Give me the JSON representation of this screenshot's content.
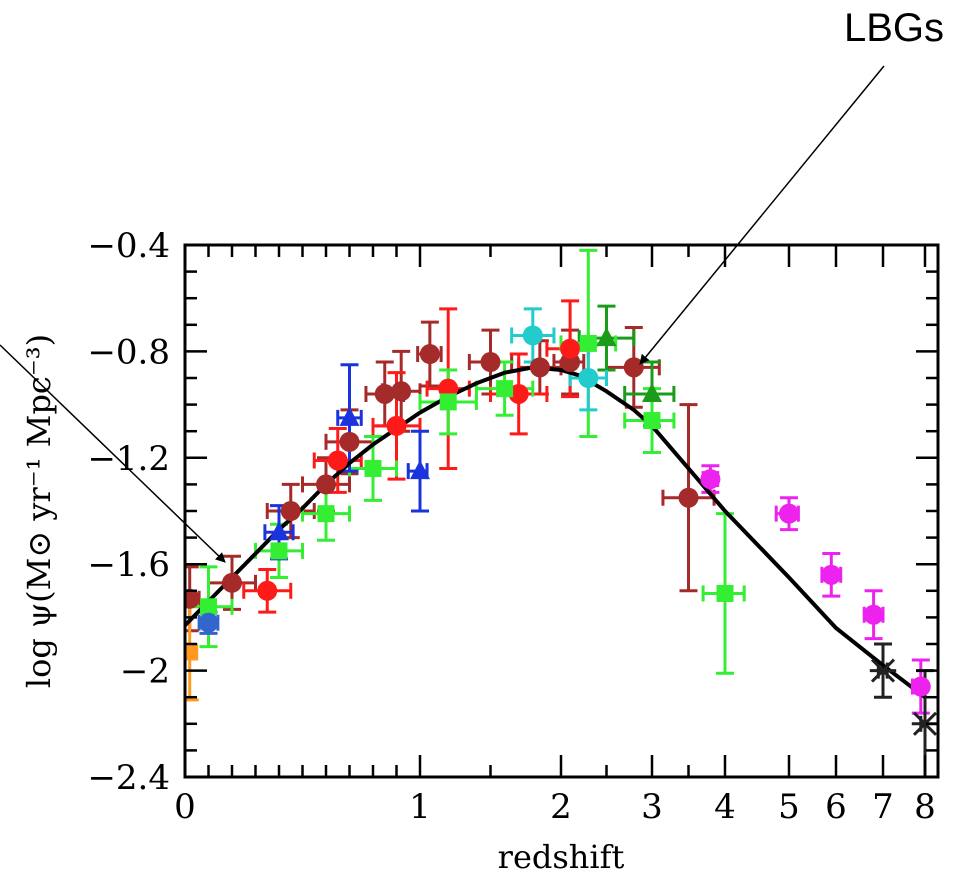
{
  "annotation": {
    "label": "LBGs"
  },
  "chart_data": {
    "type": "scatter",
    "xlabel": "redshift",
    "ylabel": "log ψ(M⊙ yr⁻¹ Mpc⁻³)",
    "ylim": [
      -2.4,
      -0.4
    ],
    "x_ticks": [
      "0",
      "1",
      "2",
      "3",
      "4",
      "5",
      "6",
      "7",
      "8"
    ],
    "y_ticks": [
      "-0.4",
      "-0.8",
      "-1.2",
      "-1.6",
      "-2",
      "-2.4"
    ],
    "grid": false,
    "fit_curve": {
      "name": "",
      "points": [
        [
          0.0,
          -1.83
        ],
        [
          0.1,
          -1.74
        ],
        [
          0.2,
          -1.65
        ],
        [
          0.3,
          -1.56
        ],
        [
          0.4,
          -1.47
        ],
        [
          0.5,
          -1.39
        ],
        [
          0.6,
          -1.3
        ],
        [
          0.7,
          -1.22
        ],
        [
          0.8,
          -1.15
        ],
        [
          0.9,
          -1.09
        ],
        [
          1.0,
          -1.03
        ],
        [
          1.2,
          -0.97
        ],
        [
          1.4,
          -0.92
        ],
        [
          1.6,
          -0.88
        ],
        [
          1.8,
          -0.86
        ],
        [
          2.0,
          -0.87
        ],
        [
          2.2,
          -0.89
        ],
        [
          2.5,
          -0.95
        ],
        [
          2.8,
          -1.02
        ],
        [
          3.0,
          -1.08
        ],
        [
          3.5,
          -1.24
        ],
        [
          4.0,
          -1.4
        ],
        [
          5.0,
          -1.65
        ],
        [
          6.0,
          -1.84
        ],
        [
          7.0,
          -1.98
        ],
        [
          8.0,
          -2.1
        ]
      ]
    },
    "series": [
      {
        "color": "#a52a2a",
        "marker": "circle",
        "points": [
          {
            "x": 0.02,
            "y": -1.73,
            "yerr": 0.12,
            "xerr": 0.04
          },
          {
            "x": 0.2,
            "y": -1.67,
            "yerr": 0.1,
            "xerr": 0.1
          },
          {
            "x": 0.45,
            "y": -1.4,
            "yerr": 0.1,
            "xerr": 0.1
          },
          {
            "x": 0.6,
            "y": -1.3,
            "yerr": 0.1,
            "xerr": 0.1
          },
          {
            "x": 0.7,
            "y": -1.14,
            "yerr": 0.12,
            "xerr": 0.1
          },
          {
            "x": 0.85,
            "y": -0.96,
            "yerr": 0.12,
            "xerr": 0.08
          },
          {
            "x": 0.92,
            "y": -0.95,
            "yerr": 0.15,
            "xerr": 0.08
          },
          {
            "x": 1.07,
            "y": -0.81,
            "yerr": 0.12,
            "xerr": 0.08
          },
          {
            "x": 1.5,
            "y": -0.84,
            "yerr": 0.12,
            "xerr": 0.15
          },
          {
            "x": 1.85,
            "y": -0.86,
            "yerr": 0.1,
            "xerr": 0.15
          },
          {
            "x": 2.1,
            "y": -0.84,
            "yerr": 0.12,
            "xerr": 0.15
          },
          {
            "x": 2.8,
            "y": -0.86,
            "yerr": 0.15,
            "xerr": 0.3
          },
          {
            "x": 3.5,
            "y": -1.35,
            "yerr": 0.35,
            "xerr": 0.35
          }
        ]
      },
      {
        "color": "#ff1a1a",
        "marker": "circle",
        "points": [
          {
            "x": 0.35,
            "y": -1.7,
            "yerr": 0.08,
            "xerr": 0.1
          },
          {
            "x": 0.65,
            "y": -1.21,
            "yerr": 0.12,
            "xerr": 0.1
          },
          {
            "x": 0.9,
            "y": -1.08,
            "yerr": 0.2,
            "xerr": 0.1
          },
          {
            "x": 1.2,
            "y": -0.94,
            "yerr": 0.3,
            "xerr": 0.15
          },
          {
            "x": 1.7,
            "y": -0.96,
            "yerr": 0.15,
            "xerr": 0.2
          },
          {
            "x": 2.1,
            "y": -0.79,
            "yerr": 0.18,
            "xerr": 0.2
          }
        ]
      },
      {
        "color": "#1a9c1a",
        "marker": "triangle",
        "points": [
          {
            "x": 2.5,
            "y": -0.75,
            "yerr": 0.12,
            "xerr": 0.3
          },
          {
            "x": 3.0,
            "y": -0.96,
            "yerr": 0.12,
            "xerr": 0.3
          }
        ]
      },
      {
        "color": "#33ee33",
        "marker": "square",
        "points": [
          {
            "x": 0.1,
            "y": -1.76,
            "yerr": 0.15,
            "xerr": 0.1
          },
          {
            "x": 0.4,
            "y": -1.55,
            "yerr": 0.1,
            "xerr": 0.1
          },
          {
            "x": 0.6,
            "y": -1.41,
            "yerr": 0.1,
            "xerr": 0.1
          },
          {
            "x": 0.8,
            "y": -1.24,
            "yerr": 0.12,
            "xerr": 0.1
          },
          {
            "x": 1.2,
            "y": -0.99,
            "yerr": 0.12,
            "xerr": 0.2
          },
          {
            "x": 1.6,
            "y": -0.94,
            "yerr": 0.1,
            "xerr": 0.2
          },
          {
            "x": 2.3,
            "y": -0.77,
            "yerr": 0.35,
            "xerr": 0.3
          },
          {
            "x": 3.0,
            "y": -1.06,
            "yerr": 0.12,
            "xerr": 0.3
          },
          {
            "x": 4.0,
            "y": -1.71,
            "yerr": 0.3,
            "xerr": 0.3
          }
        ]
      },
      {
        "color": "#1a33dd",
        "marker": "triangle",
        "points": [
          {
            "x": 0.4,
            "y": -1.48,
            "yerr": 0.1,
            "xerr": 0.06
          },
          {
            "x": 0.7,
            "y": -1.05,
            "yerr": 0.2,
            "xerr": 0.05
          },
          {
            "x": 1.0,
            "y": -1.25,
            "yerr": 0.15,
            "xerr": 0.05
          }
        ]
      },
      {
        "color": "#3366cc",
        "marker": "circle",
        "points": [
          {
            "x": 0.1,
            "y": -1.82,
            "yerr": 0.04,
            "xerr": 0.04
          }
        ]
      },
      {
        "color": "#ff9922",
        "marker": "square",
        "points": [
          {
            "x": 0.02,
            "y": -1.93,
            "yerr": 0.18,
            "xerr": 0.02
          }
        ]
      },
      {
        "color": "#22cccc",
        "marker": "circle",
        "points": [
          {
            "x": 1.8,
            "y": -0.74,
            "yerr": 0.1,
            "xerr": 0.15
          },
          {
            "x": 2.3,
            "y": -0.9,
            "yerr": 0.12,
            "xerr": 0.2
          }
        ]
      },
      {
        "color": "#ee22ee",
        "marker": "circle",
        "points": [
          {
            "x": 3.8,
            "y": -1.28,
            "yerr": 0.05,
            "xerr": 0.1
          },
          {
            "x": 5.0,
            "y": -1.41,
            "yerr": 0.06,
            "xerr": 0.2
          },
          {
            "x": 5.9,
            "y": -1.64,
            "yerr": 0.08,
            "xerr": 0.2
          },
          {
            "x": 6.8,
            "y": -1.79,
            "yerr": 0.09,
            "xerr": 0.2
          },
          {
            "x": 7.9,
            "y": -2.06,
            "yerr": 0.1,
            "xerr": 0.2
          }
        ]
      },
      {
        "color": "#222222",
        "marker": "star",
        "points": [
          {
            "x": 7.0,
            "y": -2.0,
            "yerr": 0.1,
            "xerr": 0.1
          },
          {
            "x": 8.0,
            "y": -2.2,
            "yerr": 0.2,
            "xerr": 0.1
          }
        ]
      }
    ]
  }
}
